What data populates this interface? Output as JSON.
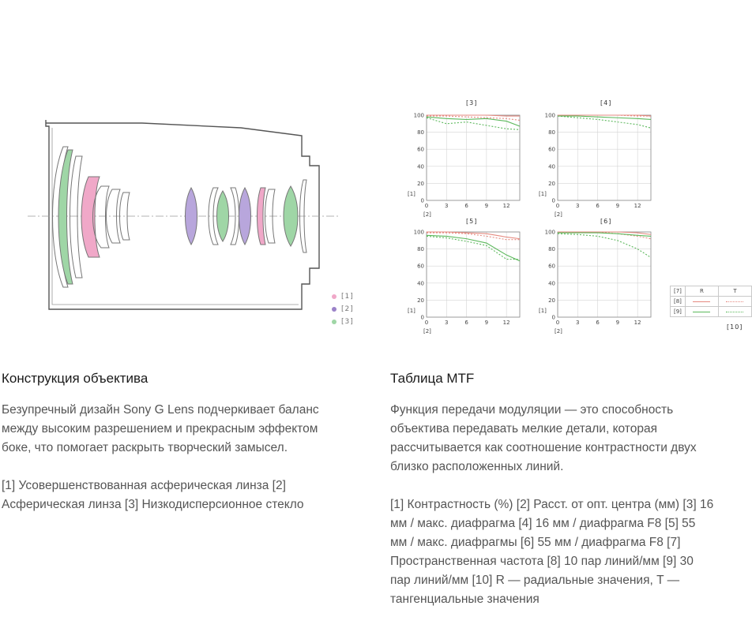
{
  "lens": {
    "title": "Конструкция объектива",
    "description": "Безупречный дизайн Sony G Lens подчеркивает баланс между высоким разрешением и прекрасным эффектом боке, что помогает раскрыть творческий замысел.",
    "legend_text": "[1] Усовершенствованная асферическая линза [2] Асферическая линза [3] Низкодисперсионное стекло",
    "diagram_legend": [
      {
        "label": "[1]",
        "color": "#f0a8c8"
      },
      {
        "label": "[2]",
        "color": "#9b82c8"
      },
      {
        "label": "[3]",
        "color": "#9fd6a6"
      }
    ]
  },
  "mtf": {
    "title": "Таблица MTF",
    "description": "Функция передачи модуляции — это способность объектива передавать мелкие детали, которая рассчитывается как соотношение контрастности двух близко расположенных линий.",
    "legend_text": "[1] Контрастность (%) [2] Расст. от опт. центра (мм) [3] 16 мм / макс. диафрагма [4] 16 мм / диафрагма F8 [5] 55 мм / макс. диафрагмы [6] 55 мм / диафрагма F8 [7] Пространственная частота [8] 10 пар линий/мм [9] 30 пар линий/мм [10] R — радиальные значения, T — тангенциальные значения",
    "y_axis_marker": "[1]",
    "x_axis_marker": "[2]",
    "legend_table": {
      "header": [
        "[7]",
        "R",
        "T"
      ],
      "rows": [
        "[8]",
        "[9]"
      ],
      "footnote": "[10]"
    },
    "colors": {
      "lp10": "#e58a80",
      "lp30": "#5cb85c"
    }
  },
  "chart_data": [
    {
      "type": "line",
      "title": "[3]",
      "x": [
        0,
        3,
        6,
        9,
        12,
        14
      ],
      "xlim": [
        0,
        14
      ],
      "ylim": [
        0,
        100
      ],
      "yticks": [
        0,
        20,
        40,
        60,
        80,
        100
      ],
      "xticks": [
        0,
        3,
        6,
        9,
        12
      ],
      "series": [
        {
          "values": [
            100,
            100,
            100,
            100,
            99,
            99
          ]
        },
        {
          "values": [
            99,
            99,
            98,
            97,
            96,
            94
          ]
        },
        {
          "values": [
            98,
            96,
            95,
            96,
            93,
            87
          ]
        },
        {
          "values": [
            97,
            90,
            92,
            88,
            84,
            83
          ]
        }
      ]
    },
    {
      "type": "line",
      "title": "[4]",
      "x": [
        0,
        3,
        6,
        9,
        12,
        14
      ],
      "xlim": [
        0,
        14
      ],
      "ylim": [
        0,
        100
      ],
      "yticks": [
        0,
        20,
        40,
        60,
        80,
        100
      ],
      "xticks": [
        0,
        3,
        6,
        9,
        12
      ],
      "series": [
        {
          "values": [
            100,
            100,
            100,
            100,
            100,
            99
          ]
        },
        {
          "values": [
            100,
            100,
            100,
            100,
            99,
            99
          ]
        },
        {
          "values": [
            99,
            99,
            98,
            97,
            96,
            95
          ]
        },
        {
          "values": [
            99,
            97,
            95,
            92,
            89,
            85
          ]
        }
      ]
    },
    {
      "type": "line",
      "title": "[5]",
      "x": [
        0,
        3,
        6,
        9,
        12,
        14
      ],
      "xlim": [
        0,
        14
      ],
      "ylim": [
        0,
        100
      ],
      "yticks": [
        0,
        20,
        40,
        60,
        80,
        100
      ],
      "xticks": [
        0,
        3,
        6,
        9,
        12
      ],
      "series": [
        {
          "values": [
            100,
            100,
            99,
            98,
            94,
            92
          ]
        },
        {
          "values": [
            99,
            99,
            98,
            95,
            91,
            91
          ]
        },
        {
          "values": [
            96,
            95,
            92,
            87,
            73,
            66
          ]
        },
        {
          "values": [
            95,
            93,
            89,
            84,
            68,
            68
          ]
        }
      ]
    },
    {
      "type": "line",
      "title": "[6]",
      "x": [
        0,
        3,
        6,
        9,
        12,
        14
      ],
      "xlim": [
        0,
        14
      ],
      "ylim": [
        0,
        100
      ],
      "yticks": [
        0,
        20,
        40,
        60,
        80,
        100
      ],
      "xticks": [
        0,
        3,
        6,
        9,
        12
      ],
      "series": [
        {
          "values": [
            100,
            100,
            100,
            100,
            99,
            97
          ]
        },
        {
          "values": [
            100,
            100,
            100,
            98,
            95,
            92
          ]
        },
        {
          "values": [
            99,
            99,
            99,
            98,
            96,
            95
          ]
        },
        {
          "values": [
            98,
            97,
            95,
            90,
            80,
            70
          ]
        }
      ]
    }
  ]
}
